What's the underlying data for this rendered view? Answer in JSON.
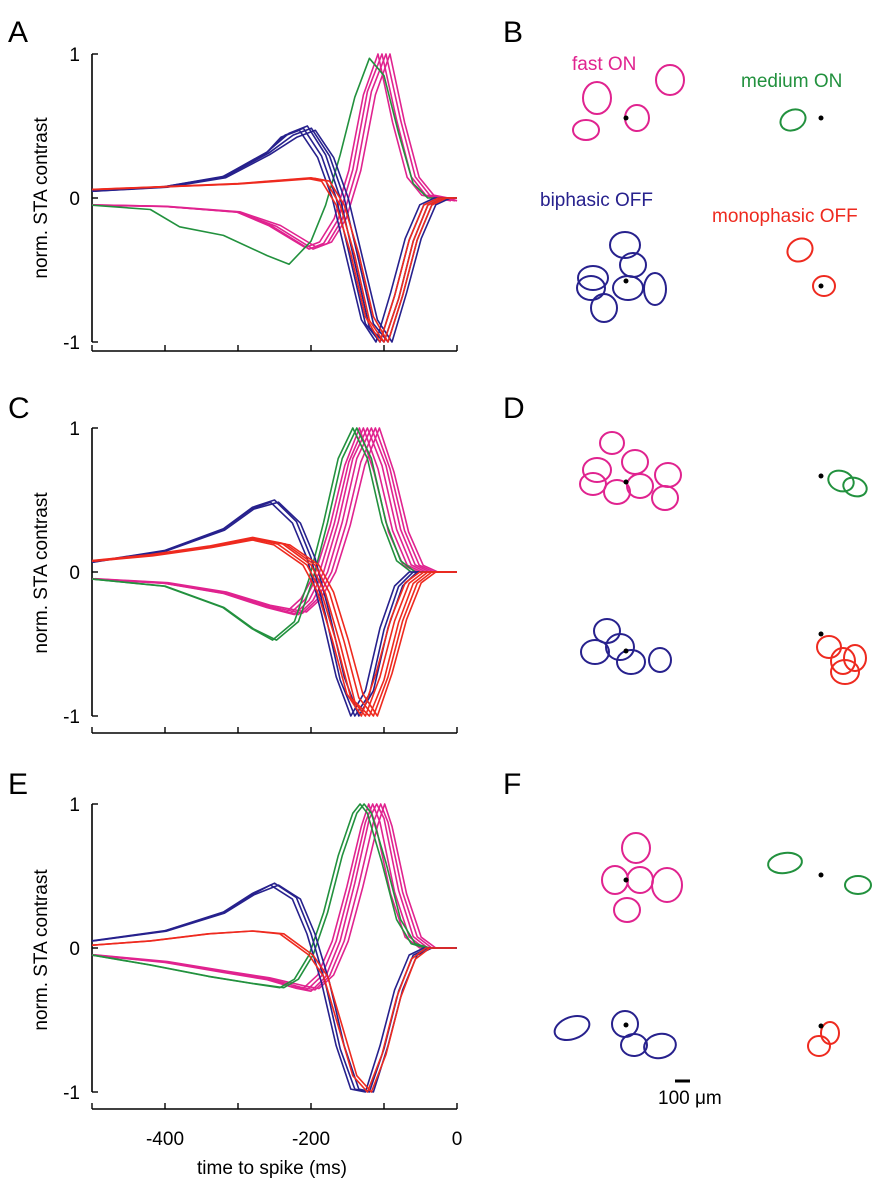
{
  "figure": {
    "colors": {
      "fast_on": "#e0238f",
      "medium_on": "#22913e",
      "biphasic_off": "#27218d",
      "monophasic_off": "#ee2a1f"
    },
    "rf_panels": {
      "B": {
        "letter": "B",
        "labels": {
          "fast_on": "fast ON",
          "medium_on": "medium ON",
          "biphasic_off": "biphasic OFF",
          "monophasic_off": "monophasic OFF"
        }
      },
      "D": {
        "letter": "D"
      },
      "F": {
        "letter": "F"
      }
    },
    "scale_bar_label": "100 μm"
  },
  "chart_data": [
    {
      "panel": "A",
      "type": "line",
      "ylabel": "norm. STA contrast",
      "xlabel": "",
      "xlim": [
        -500,
        0
      ],
      "ylim": [
        -1,
        1
      ],
      "yticks": [
        "1",
        "0",
        "-1"
      ],
      "xticks": [],
      "series": [
        {
          "cell_type": "fast_on",
          "count": 4,
          "x": [
            -500,
            -400,
            -300,
            -250,
            -200,
            -180,
            -160,
            -140,
            -120,
            -100,
            -80,
            -60,
            -40,
            -20,
            0
          ],
          "y": [
            -0.05,
            -0.06,
            -0.1,
            -0.2,
            -0.36,
            -0.32,
            -0.15,
            0.2,
            0.75,
            1.0,
            0.55,
            0.15,
            0.02,
            0.0,
            -0.02
          ]
        },
        {
          "cell_type": "medium_on",
          "count": 1,
          "x": [
            -500,
            -420,
            -380,
            -320,
            -260,
            -230,
            -200,
            -180,
            -160,
            -140,
            -120,
            -100,
            -80,
            -60,
            -40,
            -20,
            0
          ],
          "y": [
            -0.05,
            -0.08,
            -0.2,
            -0.26,
            -0.4,
            -0.46,
            -0.3,
            -0.05,
            0.3,
            0.7,
            0.97,
            0.85,
            0.45,
            0.1,
            0.0,
            0.0,
            0.0
          ]
        },
        {
          "cell_type": "biphasic_off",
          "count": 5,
          "x": [
            -500,
            -400,
            -320,
            -260,
            -230,
            -205,
            -180,
            -160,
            -140,
            -120,
            -100,
            -80,
            -60,
            -40,
            -20,
            0
          ],
          "y": [
            0.05,
            0.08,
            0.15,
            0.32,
            0.45,
            0.5,
            0.3,
            0.0,
            -0.45,
            -0.9,
            -1.0,
            -0.7,
            -0.3,
            -0.05,
            0.0,
            0.0
          ]
        },
        {
          "cell_type": "monophasic_off",
          "count": 3,
          "x": [
            -500,
            -400,
            -300,
            -250,
            -200,
            -180,
            -160,
            -140,
            -120,
            -100,
            -80,
            -60,
            -40,
            -20,
            0
          ],
          "y": [
            0.06,
            0.08,
            0.1,
            0.12,
            0.14,
            0.12,
            -0.05,
            -0.4,
            -0.85,
            -1.0,
            -0.7,
            -0.3,
            -0.05,
            0.0,
            0.0
          ]
        }
      ]
    },
    {
      "panel": "C",
      "type": "line",
      "ylabel": "norm. STA contrast",
      "xlabel": "",
      "xlim": [
        -500,
        0
      ],
      "ylim": [
        -1,
        1
      ],
      "yticks": [
        "1",
        "0",
        "-1"
      ],
      "xticks": [],
      "series": [
        {
          "cell_type": "fast_on",
          "count": 6,
          "x": [
            -500,
            -400,
            -320,
            -260,
            -220,
            -200,
            -180,
            -160,
            -140,
            -120,
            -100,
            -80,
            -60,
            -40,
            -20,
            0
          ],
          "y": [
            -0.05,
            -0.08,
            -0.15,
            -0.25,
            -0.3,
            -0.2,
            0.0,
            0.35,
            0.8,
            1.0,
            0.75,
            0.3,
            0.05,
            0.0,
            0.0,
            0.0
          ]
        },
        {
          "cell_type": "medium_on",
          "count": 2,
          "x": [
            -500,
            -400,
            -320,
            -280,
            -250,
            -220,
            -200,
            -180,
            -160,
            -140,
            -120,
            -100,
            -80,
            -60,
            -40,
            -20,
            0
          ],
          "y": [
            -0.05,
            -0.1,
            -0.25,
            -0.4,
            -0.48,
            -0.35,
            -0.05,
            0.35,
            0.8,
            1.0,
            0.8,
            0.35,
            0.08,
            0.0,
            0.0,
            0.0,
            0.0
          ]
        },
        {
          "cell_type": "biphasic_off",
          "count": 3,
          "x": [
            -500,
            -400,
            -320,
            -280,
            -250,
            -220,
            -200,
            -180,
            -160,
            -140,
            -120,
            -100,
            -80,
            -60,
            -40,
            -20,
            0
          ],
          "y": [
            0.07,
            0.15,
            0.3,
            0.45,
            0.5,
            0.35,
            0.1,
            -0.3,
            -0.75,
            -1.0,
            -0.85,
            -0.4,
            -0.1,
            0.0,
            0.0,
            0.0,
            0.0
          ]
        },
        {
          "cell_type": "monophasic_off",
          "count": 5,
          "x": [
            -500,
            -420,
            -340,
            -280,
            -240,
            -200,
            -180,
            -160,
            -140,
            -120,
            -100,
            -80,
            -60,
            -40,
            -20,
            0
          ],
          "y": [
            0.08,
            0.12,
            0.18,
            0.24,
            0.2,
            0.05,
            -0.15,
            -0.5,
            -0.9,
            -1.0,
            -0.75,
            -0.35,
            -0.08,
            0.0,
            0.0,
            0.0
          ]
        }
      ]
    },
    {
      "panel": "E",
      "type": "line",
      "ylabel": "norm. STA contrast",
      "xlabel": "time to spike (ms)",
      "xlim": [
        -500,
        0
      ],
      "ylim": [
        -1,
        1
      ],
      "yticks": [
        "1",
        "0",
        "-1"
      ],
      "xticks": [
        "-400",
        "-200",
        "0"
      ],
      "series": [
        {
          "cell_type": "fast_on",
          "count": 5,
          "x": [
            -500,
            -400,
            -320,
            -260,
            -220,
            -200,
            -180,
            -160,
            -140,
            -120,
            -110,
            -100,
            -80,
            -60,
            -40,
            -20,
            0
          ],
          "y": [
            -0.05,
            -0.1,
            -0.17,
            -0.22,
            -0.28,
            -0.3,
            -0.2,
            0.05,
            0.45,
            0.9,
            1.0,
            0.9,
            0.4,
            0.08,
            0.0,
            0.0,
            0.0
          ]
        },
        {
          "cell_type": "medium_on",
          "count": 2,
          "x": [
            -500,
            -420,
            -340,
            -280,
            -240,
            -220,
            -200,
            -180,
            -160,
            -140,
            -130,
            -120,
            -100,
            -80,
            -60,
            -40,
            -20,
            0
          ],
          "y": [
            -0.05,
            -0.12,
            -0.2,
            -0.25,
            -0.28,
            -0.22,
            -0.05,
            0.25,
            0.65,
            0.95,
            1.0,
            0.95,
            0.6,
            0.2,
            0.03,
            0.0,
            0.0,
            0.0
          ]
        },
        {
          "cell_type": "biphasic_off",
          "count": 3,
          "x": [
            -500,
            -400,
            -320,
            -280,
            -250,
            -220,
            -200,
            -180,
            -160,
            -140,
            -120,
            -100,
            -80,
            -60,
            -40,
            -20,
            0
          ],
          "y": [
            0.05,
            0.12,
            0.25,
            0.38,
            0.45,
            0.35,
            0.1,
            -0.25,
            -0.7,
            -0.98,
            -1.0,
            -0.7,
            -0.3,
            -0.05,
            0.0,
            0.0,
            0.0
          ]
        },
        {
          "cell_type": "monophasic_off",
          "count": 2,
          "x": [
            -500,
            -420,
            -340,
            -280,
            -240,
            -200,
            -180,
            -160,
            -140,
            -120,
            -100,
            -80,
            -60,
            -40,
            -20,
            0
          ],
          "y": [
            0.02,
            0.05,
            0.1,
            0.12,
            0.1,
            -0.05,
            -0.2,
            -0.55,
            -0.9,
            -1.0,
            -0.75,
            -0.35,
            -0.08,
            0.0,
            0.0,
            0.0
          ]
        }
      ]
    }
  ]
}
